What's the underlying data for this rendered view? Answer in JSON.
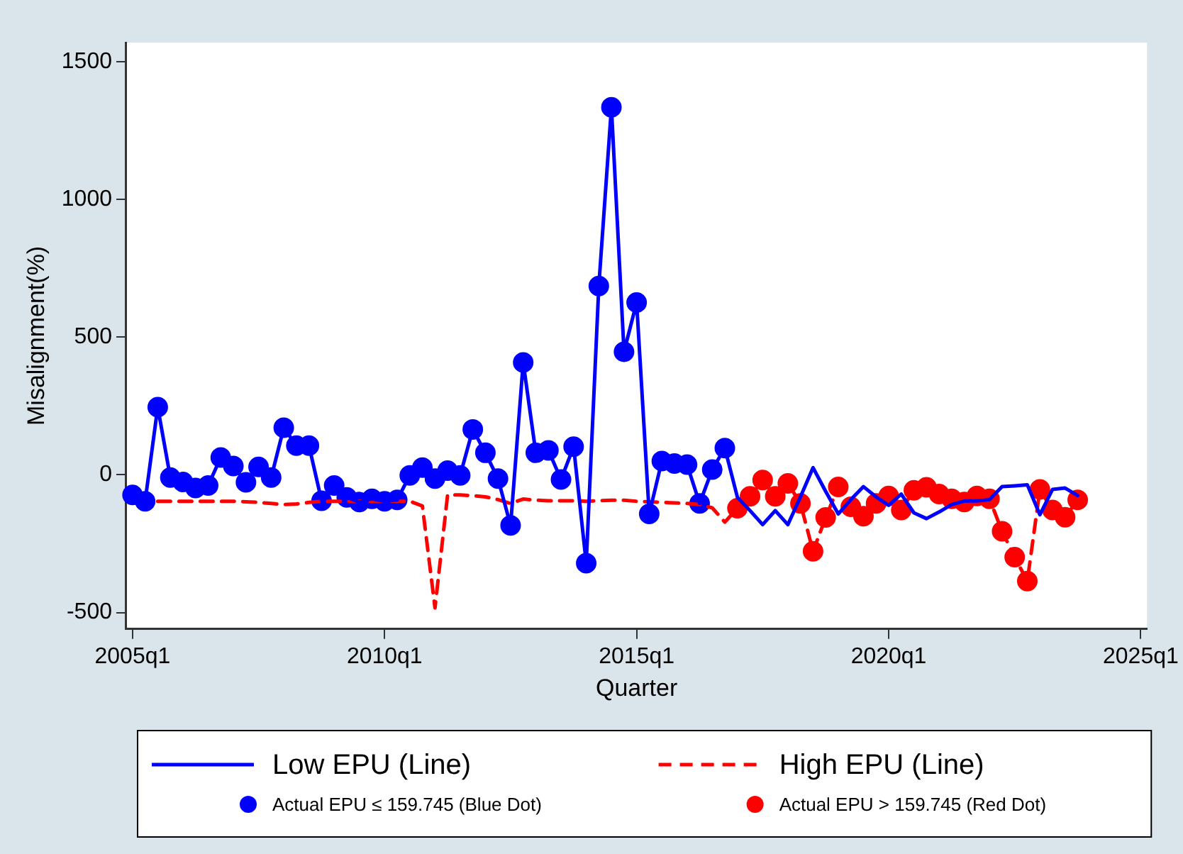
{
  "chart_data": {
    "type": "line",
    "xlabel": "Quarter",
    "ylabel": "Misalignment(%)",
    "categories": [
      "2005q1",
      null,
      null,
      null,
      null,
      null,
      null,
      null,
      null,
      null,
      null,
      null,
      null,
      null,
      null,
      null,
      null,
      null,
      null,
      null,
      "2010q1",
      null,
      null,
      null,
      null,
      null,
      null,
      null,
      null,
      null,
      null,
      null,
      null,
      null,
      null,
      null,
      null,
      null,
      null,
      null,
      "2015q1",
      null,
      null,
      null,
      null,
      null,
      null,
      null,
      null,
      null,
      null,
      null,
      null,
      null,
      null,
      null,
      null,
      null,
      null,
      null,
      "2020q1",
      null,
      null,
      null,
      null,
      null,
      null,
      null,
      null,
      null,
      null,
      null,
      null,
      null,
      null,
      null,
      null,
      null,
      null,
      null,
      "2025q1"
    ],
    "ylim": [
      -560,
      1570
    ],
    "yticks": [
      -500,
      0,
      500,
      1000,
      1500
    ],
    "grid": false,
    "legend": "bottom",
    "series": [
      {
        "name": "Low EPU (Line)",
        "type": "line",
        "color": "#0000ff",
        "line_style": "solid",
        "marker": "none",
        "values": [
          -73,
          -96,
          246,
          -10,
          -26,
          -48,
          -39,
          63,
          32,
          -27,
          29,
          -10,
          171,
          106,
          106,
          -94,
          -39,
          -82,
          -99,
          -87,
          -96,
          -91,
          -2,
          26,
          -14,
          15,
          -2,
          165,
          80,
          -14,
          -184,
          408,
          80,
          89,
          -17,
          102,
          -321,
          686,
          1335,
          447,
          626,
          -142,
          50,
          41,
          37,
          -104,
          19,
          97,
          -82,
          -130,
          -181,
          -130,
          -181,
          -80,
          26,
          -60,
          -142,
          -90,
          -43,
          -80,
          -111,
          -70,
          -138,
          -159,
          -135,
          -108,
          -95,
          -95,
          -90,
          -43,
          -40,
          -36,
          -145,
          -53,
          -48,
          -75,
          null,
          null,
          null,
          null,
          null
        ]
      },
      {
        "name": "High EPU (Line)",
        "type": "line",
        "color": "#ff0000",
        "line_style": "dashed",
        "marker": "none",
        "values": [
          null,
          null,
          -96,
          -96,
          -96,
          -96,
          -96,
          -96,
          -96,
          -98,
          -100,
          -104,
          -108,
          -106,
          -100,
          -96,
          -96,
          -96,
          -96,
          -96,
          -96,
          -96,
          -96,
          -113,
          -483,
          -73,
          -73,
          -76,
          -80,
          -90,
          -104,
          -88,
          -92,
          -94,
          -94,
          -94,
          -96,
          -94,
          -92,
          -92,
          -96,
          -98,
          -100,
          -102,
          -104,
          -108,
          -120,
          -172,
          -121,
          -78,
          -19,
          -78,
          -31,
          -104,
          -278,
          -155,
          -44,
          -116,
          -150,
          -104,
          -77,
          -128,
          -56,
          -45,
          -70,
          -87,
          -99,
          -77,
          -87,
          -205,
          -299,
          -386,
          -53,
          -128,
          -154,
          -91,
          null,
          null,
          null,
          null,
          null
        ]
      },
      {
        "name": "Actual EPU ≤ 159.745 (Blue Dot)",
        "type": "scatter",
        "color": "#0000ff",
        "marker": "circle",
        "values": [
          -73,
          -96,
          246,
          -10,
          -26,
          -48,
          -39,
          63,
          32,
          -27,
          29,
          -10,
          171,
          106,
          106,
          -94,
          -39,
          -82,
          -99,
          -87,
          -96,
          -91,
          -2,
          26,
          -14,
          15,
          -2,
          165,
          80,
          -14,
          -184,
          408,
          80,
          89,
          -17,
          102,
          -321,
          686,
          1335,
          447,
          626,
          -142,
          50,
          41,
          37,
          -104,
          19,
          97,
          null,
          null,
          null,
          null,
          null,
          null,
          null,
          null,
          null,
          null,
          null,
          null,
          null,
          null,
          null,
          null,
          null,
          null,
          null,
          null,
          null,
          null,
          null,
          null,
          null,
          null,
          null,
          null,
          null,
          null,
          null,
          null,
          null
        ]
      },
      {
        "name": "Actual EPU > 159.745 (Red Dot)",
        "type": "scatter",
        "color": "#ff0000",
        "marker": "circle",
        "values": [
          null,
          null,
          null,
          null,
          null,
          null,
          null,
          null,
          null,
          null,
          null,
          null,
          null,
          null,
          null,
          null,
          null,
          null,
          null,
          null,
          null,
          null,
          null,
          null,
          null,
          null,
          null,
          null,
          null,
          null,
          null,
          null,
          null,
          null,
          null,
          null,
          null,
          null,
          null,
          null,
          null,
          null,
          null,
          null,
          null,
          null,
          null,
          null,
          -121,
          -78,
          -19,
          -78,
          -31,
          -104,
          -278,
          -155,
          -44,
          -116,
          -150,
          -104,
          -77,
          -128,
          -56,
          -45,
          -70,
          -87,
          -99,
          -77,
          -87,
          -205,
          -299,
          -386,
          -53,
          -128,
          -154,
          -91,
          null,
          null,
          null,
          null,
          null
        ]
      }
    ]
  }
}
